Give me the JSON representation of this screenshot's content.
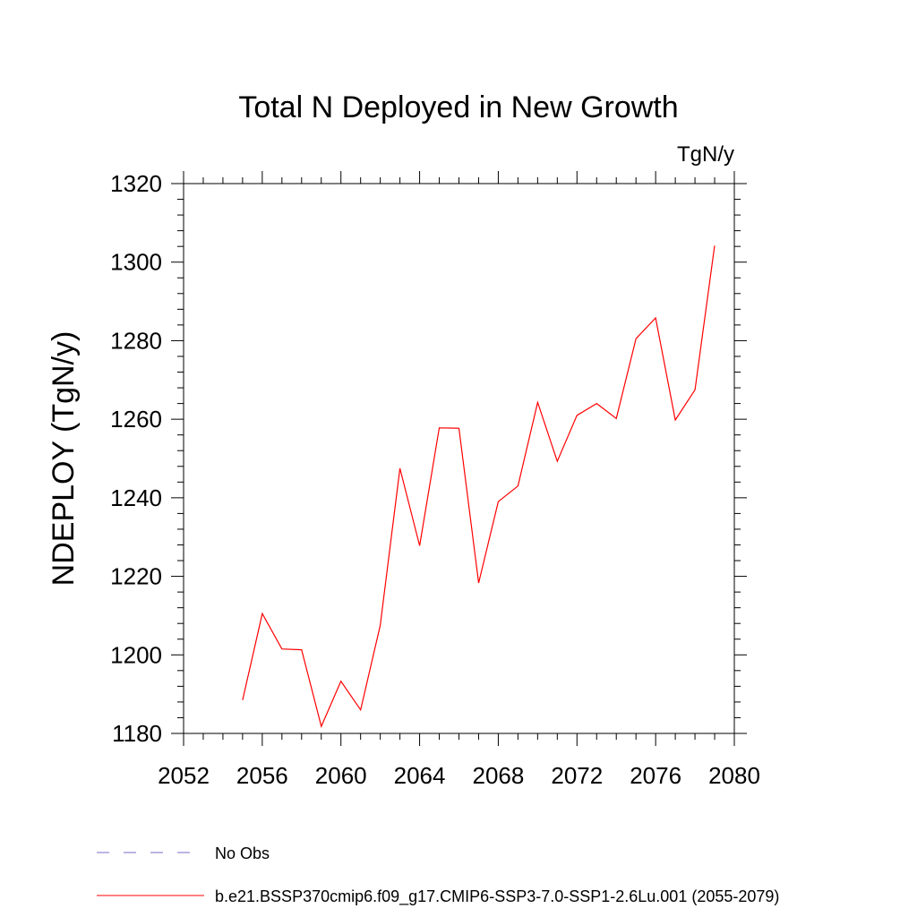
{
  "chart_data": {
    "type": "line",
    "title": "Total N Deployed in New Growth",
    "units_label": "TgN/y",
    "xlabel": "",
    "ylabel": "NDEPLOY  (TgN/y)",
    "xlim": [
      2052,
      2080
    ],
    "ylim": [
      1180,
      1320
    ],
    "x_ticks": [
      2052,
      2056,
      2060,
      2064,
      2068,
      2072,
      2076,
      2080
    ],
    "y_ticks": [
      1180,
      1200,
      1220,
      1240,
      1260,
      1280,
      1300,
      1320
    ],
    "grid": false,
    "legend_position": "bottom",
    "series": [
      {
        "name": "b.e21.BSSP370cmip6.f09_g17.CMIP6-SSP3-7.0-SSP1-2.6Lu.001 (2055-2079)",
        "color": "#ff0000",
        "x": [
          2055,
          2056,
          2057,
          2058,
          2059,
          2060,
          2061,
          2062,
          2063,
          2064,
          2065,
          2066,
          2067,
          2068,
          2069,
          2070,
          2071,
          2072,
          2073,
          2074,
          2075,
          2076,
          2077,
          2078,
          2079
        ],
        "y": [
          1188.5,
          1210.5,
          1201.5,
          1201.3,
          1181.8,
          1193.3,
          1186.0,
          1207.5,
          1247.5,
          1227.8,
          1257.8,
          1257.7,
          1218.3,
          1239.0,
          1243.0,
          1264.3,
          1249.3,
          1261.0,
          1264.0,
          1260.2,
          1280.5,
          1285.8,
          1259.8,
          1267.5,
          1304.2
        ]
      }
    ],
    "legend": [
      {
        "label": "No Obs",
        "color": "#7b68c8",
        "style": "dashed"
      },
      {
        "label": "b.e21.BSSP370cmip6.f09_g17.CMIP6-SSP3-7.0-SSP1-2.6Lu.001 (2055-2079)",
        "color": "#ff0000",
        "style": "solid"
      }
    ]
  }
}
